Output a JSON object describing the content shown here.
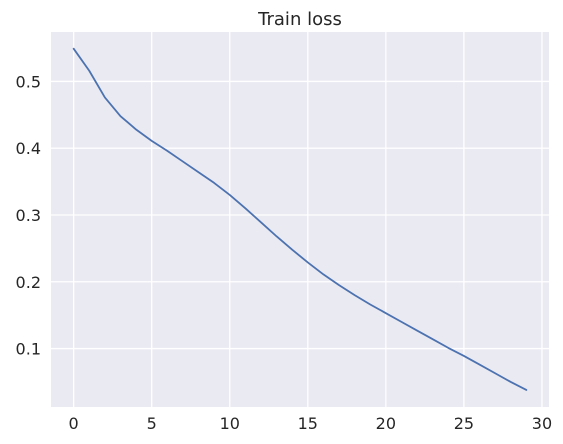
{
  "chart_data": {
    "type": "line",
    "title": "Train loss",
    "xlabel": "",
    "ylabel": "",
    "xlim": [
      -1.45,
      30.45
    ],
    "ylim": [
      0.0125,
      0.574
    ],
    "x_ticks": [
      0,
      5,
      10,
      15,
      20,
      25,
      30
    ],
    "y_ticks": [
      0.1,
      0.2,
      0.3,
      0.4,
      0.5
    ],
    "grid": true,
    "legend": "none",
    "colors": {
      "background": "#eaeaf2",
      "grid": "#ffffff",
      "line": "#4c72b0",
      "text": "#262626"
    },
    "series": [
      {
        "x": [
          0,
          1,
          2,
          3,
          4,
          5,
          6,
          7,
          8,
          9,
          10,
          11,
          12,
          13,
          14,
          15,
          16,
          17,
          18,
          19,
          20,
          21,
          22,
          23,
          24,
          25,
          26,
          27,
          28,
          29
        ],
        "values": [
          0.549,
          0.516,
          0.476,
          0.448,
          0.428,
          0.411,
          0.396,
          0.38,
          0.364,
          0.348,
          0.33,
          0.31,
          0.289,
          0.268,
          0.248,
          0.229,
          0.211,
          0.195,
          0.18,
          0.166,
          0.153,
          0.14,
          0.127,
          0.114,
          0.101,
          0.089,
          0.076,
          0.063,
          0.05,
          0.038
        ]
      }
    ]
  }
}
